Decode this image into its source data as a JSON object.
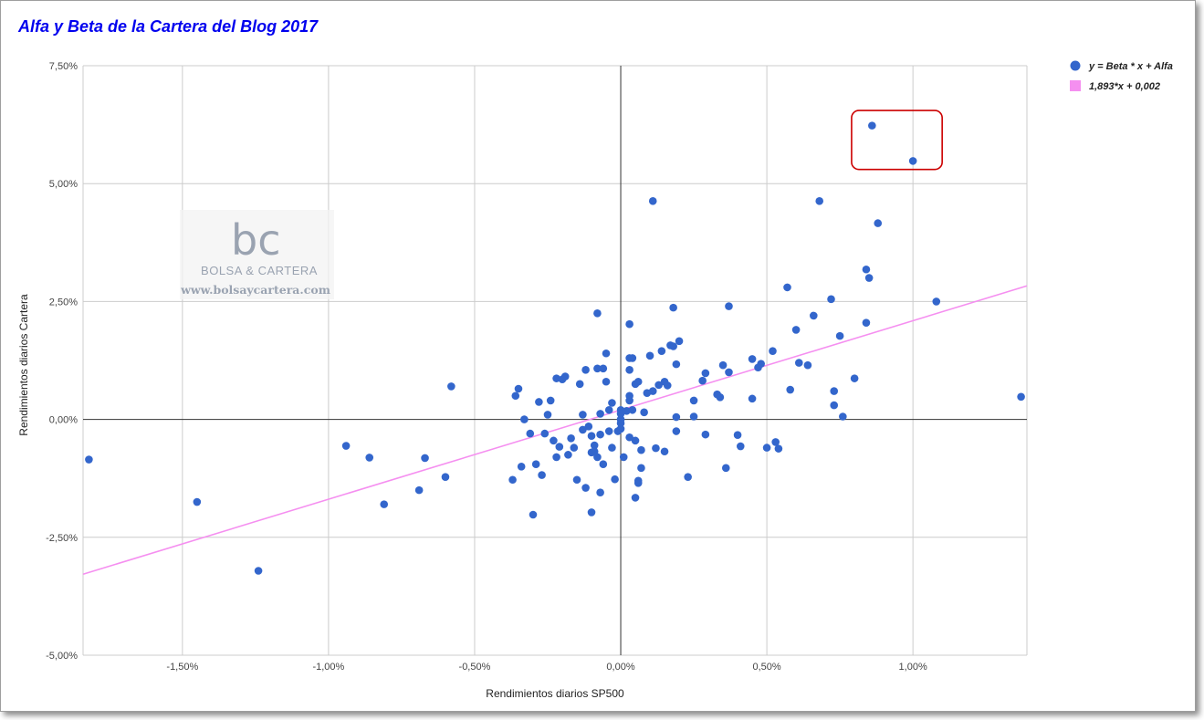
{
  "chart_data": {
    "type": "scatter",
    "title": "Alfa y Beta de la Cartera del Blog 2017",
    "xlabel": "Rendimientos diarios SP500",
    "ylabel": "Rendimientos diarios Cartera",
    "xlim": [
      -1.84,
      1.39
    ],
    "ylim": [
      -5.0,
      7.5
    ],
    "x_ticks": [
      -1.5,
      -1.0,
      -0.5,
      0.0,
      0.5,
      1.0
    ],
    "x_tick_labels": [
      "-1,50%",
      "-1,00%",
      "-0,50%",
      "0,00%",
      "0,50%",
      "1,00%"
    ],
    "y_ticks": [
      -5.0,
      -2.5,
      0.0,
      2.5,
      5.0,
      7.5
    ],
    "y_tick_labels": [
      "-5,00%",
      "-2,50%",
      "0,00%",
      "2,50%",
      "5,00%",
      "7,50%"
    ],
    "grid": true,
    "legend_position": "top-right",
    "series": [
      {
        "name": "y = Beta * x + Alfa",
        "kind": "scatter",
        "color": "#3366cc",
        "points": [
          [
            -1.82,
            -0.85
          ],
          [
            -1.45,
            -1.75
          ],
          [
            -1.24,
            -3.21
          ],
          [
            -0.94,
            -0.56
          ],
          [
            -0.86,
            -0.81
          ],
          [
            -0.81,
            -1.8
          ],
          [
            -0.69,
            -1.5
          ],
          [
            -0.67,
            -0.82
          ],
          [
            -0.6,
            -1.22
          ],
          [
            -0.58,
            0.7
          ],
          [
            -0.37,
            -1.28
          ],
          [
            -0.36,
            0.5
          ],
          [
            -0.35,
            0.65
          ],
          [
            -0.34,
            -1.0
          ],
          [
            -0.33,
            0.0
          ],
          [
            -0.31,
            -0.3
          ],
          [
            -0.3,
            -2.02
          ],
          [
            -0.29,
            -0.95
          ],
          [
            -0.28,
            0.37
          ],
          [
            -0.27,
            -1.18
          ],
          [
            -0.26,
            -0.3
          ],
          [
            -0.25,
            0.1
          ],
          [
            -0.24,
            0.4
          ],
          [
            -0.23,
            -0.45
          ],
          [
            -0.22,
            0.87
          ],
          [
            -0.22,
            -0.8
          ],
          [
            -0.21,
            -0.58
          ],
          [
            -0.2,
            0.85
          ],
          [
            -0.19,
            0.91
          ],
          [
            -0.18,
            -0.75
          ],
          [
            -0.17,
            -0.4
          ],
          [
            -0.16,
            -0.6
          ],
          [
            -0.15,
            -1.28
          ],
          [
            -0.14,
            0.75
          ],
          [
            -0.13,
            -0.22
          ],
          [
            -0.13,
            0.1
          ],
          [
            -0.12,
            -1.45
          ],
          [
            -0.12,
            1.05
          ],
          [
            -0.11,
            -0.15
          ],
          [
            -0.1,
            -0.35
          ],
          [
            -0.1,
            -0.7
          ],
          [
            -0.1,
            -1.97
          ],
          [
            -0.09,
            -0.55
          ],
          [
            -0.09,
            -0.68
          ],
          [
            -0.08,
            1.08
          ],
          [
            -0.08,
            2.25
          ],
          [
            -0.08,
            -0.8
          ],
          [
            -0.07,
            -1.55
          ],
          [
            -0.07,
            0.12
          ],
          [
            -0.07,
            -0.32
          ],
          [
            -0.06,
            -0.95
          ],
          [
            -0.06,
            1.08
          ],
          [
            -0.05,
            1.4
          ],
          [
            -0.05,
            0.8
          ],
          [
            -0.04,
            -0.25
          ],
          [
            -0.04,
            0.2
          ],
          [
            -0.03,
            0.35
          ],
          [
            -0.03,
            -0.6
          ],
          [
            -0.02,
            -1.27
          ],
          [
            -0.01,
            -0.25
          ],
          [
            0.0,
            0.2
          ],
          [
            0.0,
            0.0
          ],
          [
            0.0,
            -0.2
          ],
          [
            0.0,
            -0.08
          ],
          [
            0.0,
            0.12
          ],
          [
            0.01,
            -0.8
          ],
          [
            0.02,
            0.18
          ],
          [
            0.03,
            0.4
          ],
          [
            0.03,
            0.5
          ],
          [
            0.03,
            1.3
          ],
          [
            0.03,
            2.02
          ],
          [
            0.03,
            1.05
          ],
          [
            0.03,
            -0.38
          ],
          [
            0.04,
            1.3
          ],
          [
            0.04,
            0.2
          ],
          [
            0.05,
            -0.45
          ],
          [
            0.05,
            -1.66
          ],
          [
            0.05,
            0.75
          ],
          [
            0.06,
            0.8
          ],
          [
            0.06,
            -1.3
          ],
          [
            0.06,
            -1.35
          ],
          [
            0.07,
            -1.03
          ],
          [
            0.07,
            -0.65
          ],
          [
            0.08,
            0.15
          ],
          [
            0.09,
            0.56
          ],
          [
            0.1,
            1.35
          ],
          [
            0.11,
            0.6
          ],
          [
            0.11,
            4.63
          ],
          [
            0.12,
            -0.61
          ],
          [
            0.13,
            0.73
          ],
          [
            0.14,
            1.45
          ],
          [
            0.15,
            0.8
          ],
          [
            0.15,
            -0.68
          ],
          [
            0.16,
            0.72
          ],
          [
            0.17,
            1.57
          ],
          [
            0.18,
            2.37
          ],
          [
            0.18,
            1.55
          ],
          [
            0.19,
            1.17
          ],
          [
            0.19,
            -0.25
          ],
          [
            0.19,
            0.05
          ],
          [
            0.2,
            1.66
          ],
          [
            0.23,
            -1.22
          ],
          [
            0.25,
            0.06
          ],
          [
            0.25,
            0.4
          ],
          [
            0.28,
            0.82
          ],
          [
            0.29,
            0.98
          ],
          [
            0.29,
            -0.32
          ],
          [
            0.33,
            0.53
          ],
          [
            0.34,
            0.47
          ],
          [
            0.35,
            1.15
          ],
          [
            0.36,
            -1.03
          ],
          [
            0.37,
            1.0
          ],
          [
            0.37,
            2.4
          ],
          [
            0.4,
            -0.33
          ],
          [
            0.41,
            -0.57
          ],
          [
            0.45,
            0.44
          ],
          [
            0.45,
            1.28
          ],
          [
            0.47,
            1.1
          ],
          [
            0.48,
            1.18
          ],
          [
            0.5,
            -0.6
          ],
          [
            0.52,
            1.45
          ],
          [
            0.53,
            -0.48
          ],
          [
            0.54,
            -0.62
          ],
          [
            0.57,
            2.8
          ],
          [
            0.58,
            0.63
          ],
          [
            0.6,
            1.9
          ],
          [
            0.61,
            1.2
          ],
          [
            0.64,
            1.15
          ],
          [
            0.66,
            2.2
          ],
          [
            0.68,
            4.63
          ],
          [
            0.72,
            2.55
          ],
          [
            0.73,
            0.6
          ],
          [
            0.73,
            0.3
          ],
          [
            0.75,
            1.77
          ],
          [
            0.76,
            0.06
          ],
          [
            0.8,
            0.87
          ],
          [
            0.84,
            2.05
          ],
          [
            0.84,
            3.18
          ],
          [
            0.85,
            3.0
          ],
          [
            0.86,
            6.23
          ],
          [
            0.88,
            4.16
          ],
          [
            1.0,
            5.48
          ],
          [
            1.08,
            2.5
          ],
          [
            1.37,
            0.48
          ]
        ]
      },
      {
        "name": "1,893*x + 0,002",
        "kind": "trendline",
        "color": "#f58ff0",
        "slope": 1.893,
        "intercept": 0.2
      }
    ],
    "highlight_box": {
      "x_range": [
        0.79,
        1.1
      ],
      "y_range": [
        5.3,
        6.55
      ],
      "color": "#cc0000"
    }
  },
  "watermark": {
    "letters": "bc",
    "brand": "BOLSA & CARTERA",
    "url": "www.bolsaycartera.com"
  }
}
